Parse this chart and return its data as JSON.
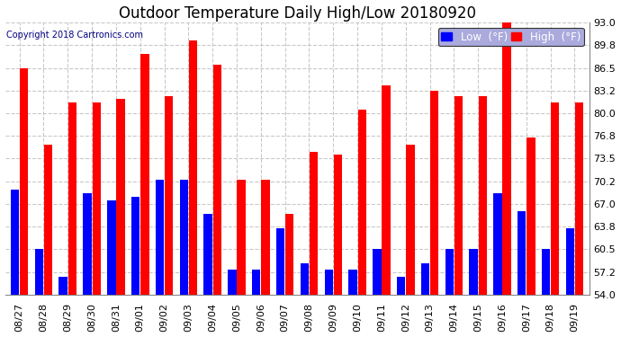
{
  "title": "Outdoor Temperature Daily High/Low 20180920",
  "copyright": "Copyright 2018 Cartronics.com",
  "legend_low": "Low  (°F)",
  "legend_high": "High  (°F)",
  "dates": [
    "08/27",
    "08/28",
    "08/29",
    "08/30",
    "08/31",
    "09/01",
    "09/02",
    "09/03",
    "09/04",
    "09/05",
    "09/06",
    "09/07",
    "09/08",
    "09/09",
    "09/10",
    "09/11",
    "09/12",
    "09/13",
    "09/14",
    "09/15",
    "09/16",
    "09/17",
    "09/18",
    "09/19"
  ],
  "lows": [
    69.0,
    60.5,
    56.5,
    68.5,
    67.5,
    68.0,
    70.5,
    70.5,
    65.5,
    57.5,
    57.5,
    63.5,
    58.5,
    57.5,
    57.5,
    60.5,
    56.5,
    58.5,
    60.5,
    60.5,
    68.5,
    66.0,
    60.5,
    63.5
  ],
  "highs": [
    86.5,
    75.5,
    81.5,
    81.5,
    82.0,
    88.5,
    82.5,
    90.5,
    87.0,
    70.5,
    70.5,
    65.5,
    74.5,
    74.0,
    80.5,
    84.0,
    75.5,
    83.2,
    82.5,
    82.5,
    93.0,
    76.5,
    81.5,
    81.5
  ],
  "ylim_min": 54.0,
  "ylim_max": 93.0,
  "yticks": [
    54.0,
    57.2,
    60.5,
    63.8,
    67.0,
    70.2,
    73.5,
    76.8,
    80.0,
    83.2,
    86.5,
    89.8,
    93.0
  ],
  "bar_color_low": "#0000ff",
  "bar_color_high": "#ff0000",
  "background_color": "#ffffff",
  "grid_color": "#bbbbbb",
  "title_fontsize": 12,
  "tick_fontsize": 8,
  "legend_fontsize": 8.5,
  "bar_width": 0.35
}
